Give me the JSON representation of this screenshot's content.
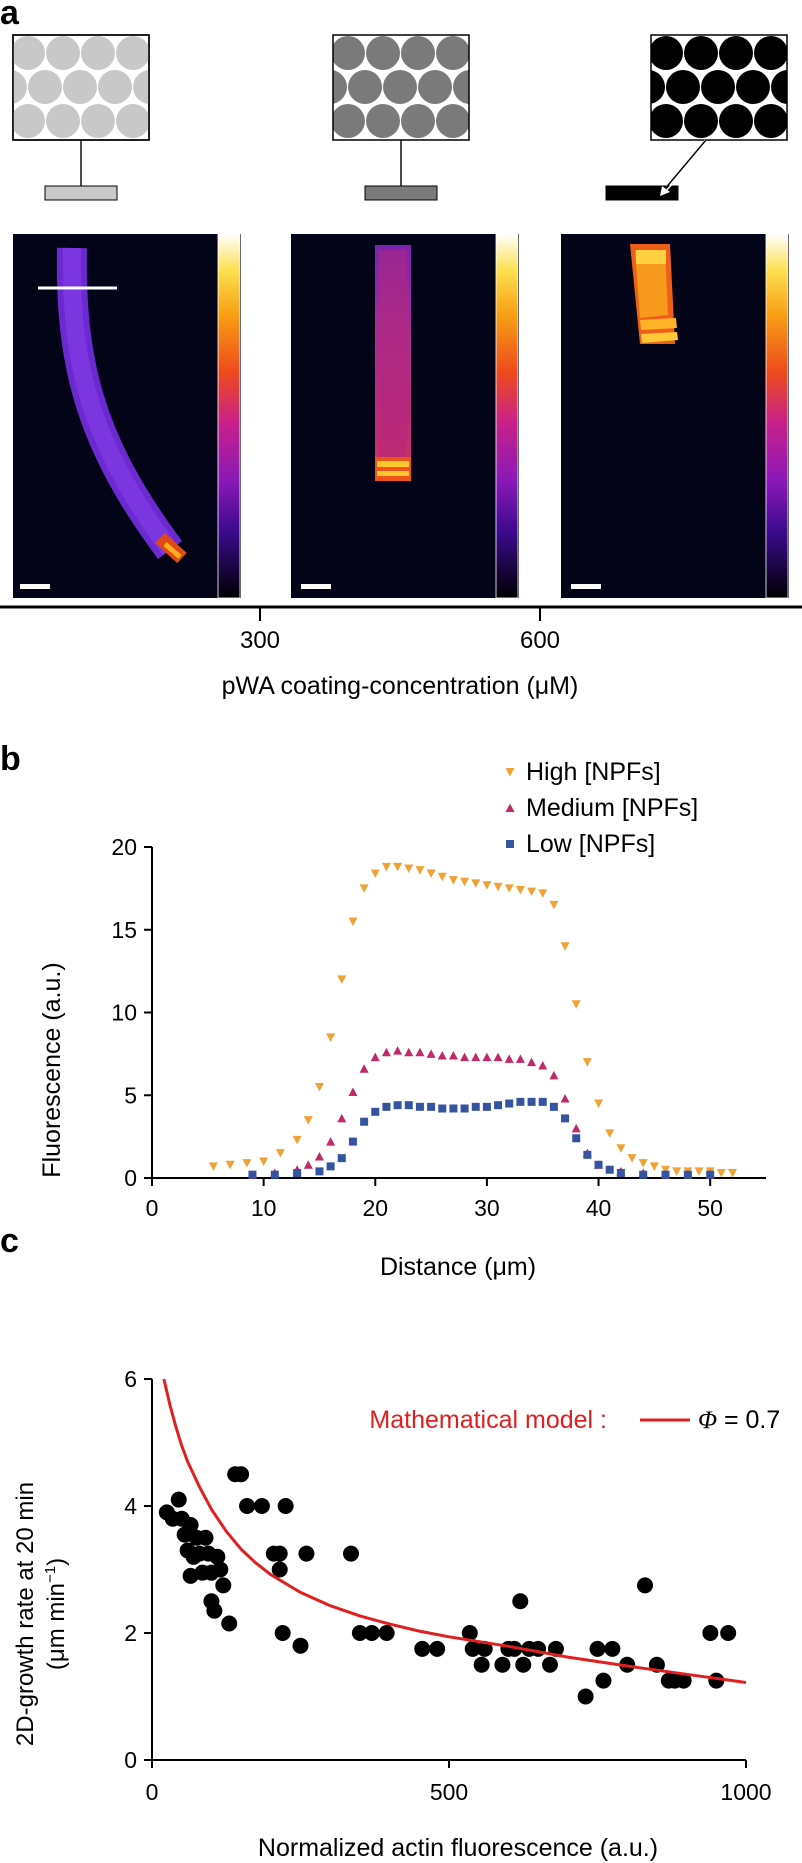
{
  "panel_a": {
    "letter": "a",
    "coating_levels": [
      {
        "name": "low",
        "color": "#c8c8c8"
      },
      {
        "name": "medium",
        "color": "#7a7a7a"
      },
      {
        "name": "high",
        "color": "#000000"
      }
    ],
    "axis_ticks": [
      "300",
      "600"
    ],
    "xlabel": "pWA coating-concentration (μM)"
  },
  "chart_data": [
    {
      "panel": "b",
      "type": "scatter",
      "letter": "b",
      "xlabel": "Distance (μm)",
      "ylabel": "Fluorescence (a.u.)",
      "xlim": [
        0,
        55
      ],
      "ylim": [
        0,
        20
      ],
      "xticks": [
        "0",
        "10",
        "20",
        "30",
        "40",
        "50"
      ],
      "yticks": [
        "0",
        "5",
        "10",
        "15",
        "20"
      ],
      "legend_position": "top-right",
      "series": [
        {
          "name": "High [NPFs]",
          "color": "#f0a234",
          "marker": "triangle-down",
          "x": [
            5.5,
            7,
            8.5,
            10,
            11.5,
            13,
            14,
            15,
            16,
            17,
            18,
            19,
            20,
            21,
            22,
            23,
            24,
            25,
            26,
            27,
            28,
            29,
            30,
            31,
            32,
            33,
            34,
            35,
            36,
            37,
            38,
            39,
            40,
            41,
            42,
            43,
            44,
            45,
            46,
            47,
            48,
            49,
            50,
            51,
            52
          ],
          "y": [
            0.7,
            0.8,
            0.9,
            1.0,
            1.5,
            2.3,
            3.5,
            5.5,
            8.5,
            12.0,
            15.5,
            17.5,
            18.4,
            18.8,
            18.8,
            18.7,
            18.6,
            18.4,
            18.2,
            18.0,
            17.9,
            17.8,
            17.7,
            17.6,
            17.5,
            17.4,
            17.3,
            17.2,
            16.5,
            14.0,
            10.5,
            7.0,
            4.5,
            2.7,
            1.8,
            1.2,
            0.9,
            0.7,
            0.5,
            0.4,
            0.4,
            0.4,
            0.4,
            0.3,
            0.3
          ]
        },
        {
          "name": "Medium [NPFs]",
          "color": "#c0296a",
          "marker": "triangle-up",
          "x": [
            9,
            11,
            13,
            14,
            15,
            16,
            17,
            18,
            19,
            20,
            21,
            22,
            23,
            24,
            25,
            26,
            27,
            28,
            29,
            30,
            31,
            32,
            33,
            34,
            35,
            36,
            37,
            38,
            39,
            40,
            42,
            44,
            46,
            48,
            50
          ],
          "y": [
            0.2,
            0.3,
            0.5,
            0.8,
            1.3,
            2.2,
            3.6,
            5.2,
            6.6,
            7.3,
            7.6,
            7.7,
            7.6,
            7.6,
            7.5,
            7.4,
            7.4,
            7.3,
            7.3,
            7.3,
            7.3,
            7.2,
            7.2,
            7.0,
            6.8,
            6.2,
            4.8,
            3.0,
            1.5,
            0.8,
            0.4,
            0.3,
            0.2,
            0.2,
            0.2
          ]
        },
        {
          "name": "Low [NPFs]",
          "color": "#3553a0",
          "marker": "square",
          "x": [
            9,
            11,
            13,
            15,
            16,
            17,
            18,
            19,
            20,
            21,
            22,
            23,
            24,
            25,
            26,
            27,
            28,
            29,
            30,
            31,
            32,
            33,
            34,
            35,
            36,
            37,
            38,
            39,
            40,
            41,
            42,
            44,
            46,
            48,
            50
          ],
          "y": [
            0.2,
            0.2,
            0.3,
            0.4,
            0.7,
            1.2,
            2.2,
            3.4,
            4.0,
            4.3,
            4.4,
            4.4,
            4.3,
            4.3,
            4.2,
            4.2,
            4.2,
            4.3,
            4.3,
            4.4,
            4.5,
            4.6,
            4.6,
            4.6,
            4.3,
            3.6,
            2.4,
            1.4,
            0.8,
            0.5,
            0.3,
            0.2,
            0.2,
            0.2,
            0.2
          ]
        }
      ]
    },
    {
      "panel": "c",
      "type": "scatter",
      "letter": "c",
      "xlabel": "Normalized actin fluorescence (a.u.)",
      "ylabel_line1": "2D-growth rate at 20 min",
      "ylabel_line2": "(μm min",
      "ylabel_sup": "−1",
      "ylabel_close": ")",
      "xlim": [
        0,
        1000
      ],
      "ylim": [
        0,
        6
      ],
      "xticks": [
        "0",
        "500",
        "1000"
      ],
      "yticks": [
        "0",
        "2",
        "4",
        "6"
      ],
      "model_label": "Mathematical model :",
      "model_legend_symbol": "Φ",
      "model_legend_value": " = 0.7",
      "model_color": "#e02020",
      "model_curve": {
        "x": [
          20,
          30,
          40,
          50,
          60,
          80,
          100,
          125,
          150,
          175,
          200,
          250,
          300,
          350,
          400,
          450,
          500,
          600,
          700,
          800,
          900,
          1000
        ],
        "y": [
          6.0,
          5.6,
          5.25,
          4.95,
          4.7,
          4.3,
          3.95,
          3.6,
          3.32,
          3.1,
          2.92,
          2.64,
          2.43,
          2.27,
          2.14,
          2.03,
          1.94,
          1.79,
          1.62,
          1.48,
          1.35,
          1.22
        ]
      },
      "points": {
        "color": "#000000",
        "x": [
          25,
          35,
          45,
          50,
          55,
          60,
          65,
          65,
          70,
          75,
          80,
          85,
          90,
          95,
          100,
          100,
          105,
          110,
          115,
          120,
          130,
          140,
          150,
          160,
          185,
          205,
          215,
          215,
          220,
          225,
          250,
          260,
          335,
          350,
          370,
          395,
          455,
          480,
          535,
          540,
          555,
          560,
          590,
          600,
          610,
          620,
          625,
          635,
          650,
          670,
          680,
          730,
          750,
          760,
          775,
          800,
          830,
          850,
          870,
          880,
          895,
          940,
          950,
          970
        ],
        "y": [
          3.9,
          3.8,
          4.1,
          3.8,
          3.55,
          3.3,
          3.7,
          2.9,
          3.2,
          3.5,
          3.25,
          2.95,
          3.5,
          3.25,
          2.5,
          2.95,
          2.35,
          3.2,
          3.0,
          2.75,
          2.15,
          4.5,
          4.5,
          4.0,
          4.0,
          3.25,
          3.0,
          3.25,
          2.0,
          4.0,
          1.8,
          3.25,
          3.25,
          2.0,
          2.0,
          2.0,
          1.75,
          1.75,
          2.0,
          1.75,
          1.5,
          1.75,
          1.5,
          1.75,
          1.75,
          2.5,
          1.5,
          1.75,
          1.75,
          1.5,
          1.75,
          1.0,
          1.75,
          1.25,
          1.75,
          1.5,
          2.75,
          1.5,
          1.25,
          1.25,
          1.25,
          2.0,
          1.25,
          2.0
        ]
      }
    }
  ]
}
